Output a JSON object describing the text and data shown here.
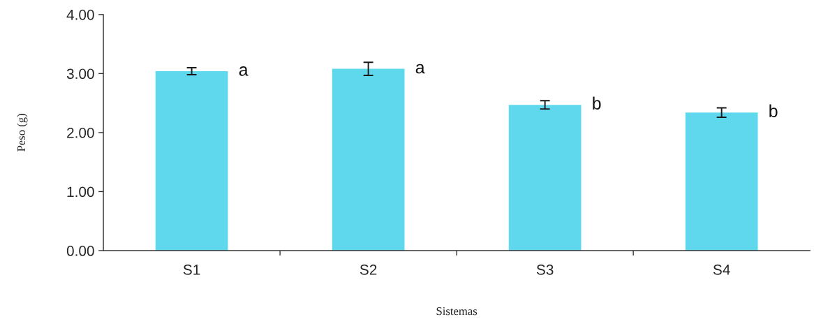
{
  "chart_data": {
    "type": "bar",
    "xlabel": "Sistemas",
    "ylabel": "Peso (g)",
    "categories": [
      "S1",
      "S2",
      "S3",
      "S4"
    ],
    "values": [
      3.04,
      3.08,
      2.47,
      2.34
    ],
    "errors": [
      0.06,
      0.11,
      0.07,
      0.08
    ],
    "color": "#5fd8ee",
    "ylim": [
      0,
      4
    ],
    "yticks": [
      {
        "value": 0,
        "label": "0.00"
      },
      {
        "value": 1,
        "label": "1.00"
      },
      {
        "value": 2,
        "label": "2.00"
      },
      {
        "value": 3,
        "label": "3.00"
      },
      {
        "value": 4,
        "label": "4.00"
      }
    ],
    "annotations": [
      "a",
      "a",
      "b",
      "b"
    ],
    "grid": false,
    "legend": false
  }
}
